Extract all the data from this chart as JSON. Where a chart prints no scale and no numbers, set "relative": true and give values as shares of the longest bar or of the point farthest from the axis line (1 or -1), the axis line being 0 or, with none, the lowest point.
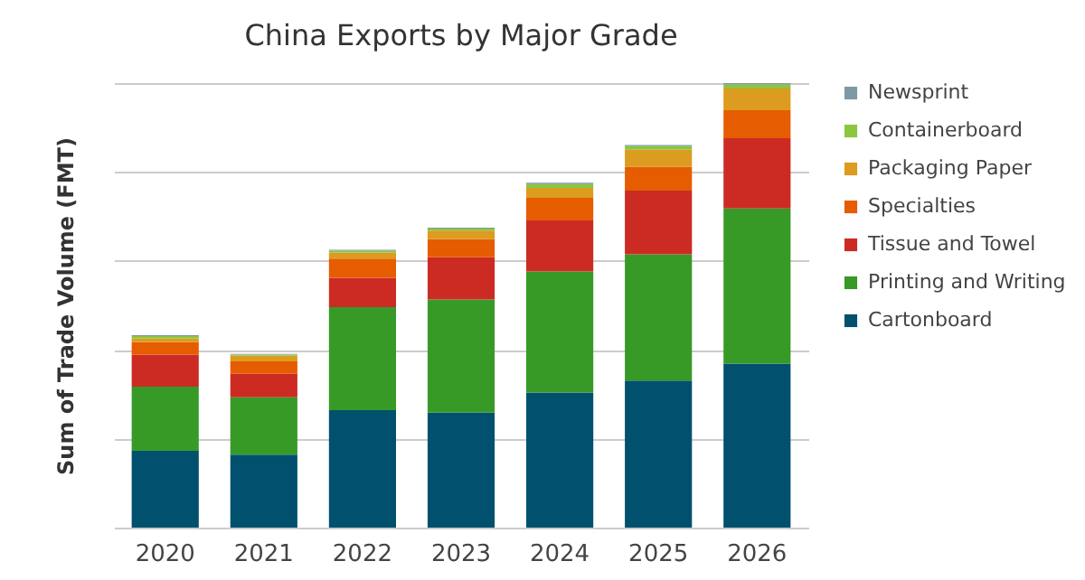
{
  "chart_data": {
    "type": "bar",
    "title": "China Exports by Major Grade",
    "ylabel": "Sum of Trade Volume (FMT)",
    "categories": [
      "2020",
      "2021",
      "2022",
      "2023",
      "2024",
      "2025",
      "2026"
    ],
    "stacked": true,
    "relative": true,
    "grid": "y",
    "legend": "right",
    "series": [
      {
        "name": "Cartonboard",
        "color": "#00506e",
        "values": [
          0.173,
          0.164,
          0.264,
          0.259,
          0.304,
          0.331,
          0.369
        ]
      },
      {
        "name": "Printing and Writing",
        "color": "#379a27",
        "values": [
          0.144,
          0.129,
          0.232,
          0.254,
          0.272,
          0.284,
          0.349
        ]
      },
      {
        "name": "Tissue and Towel",
        "color": "#cc2b24",
        "values": [
          0.072,
          0.053,
          0.066,
          0.095,
          0.115,
          0.143,
          0.158
        ]
      },
      {
        "name": "Specialties",
        "color": "#e65c00",
        "values": [
          0.028,
          0.028,
          0.043,
          0.041,
          0.051,
          0.054,
          0.063
        ]
      },
      {
        "name": "Packaging Paper",
        "color": "#dc9c1f",
        "values": [
          0.009,
          0.013,
          0.014,
          0.019,
          0.022,
          0.038,
          0.049
        ]
      },
      {
        "name": "Containerboard",
        "color": "#8cc63f",
        "values": [
          0.005,
          0.002,
          0.004,
          0.005,
          0.009,
          0.008,
          0.009
        ]
      },
      {
        "name": "Newsprint",
        "color": "#7f98a5",
        "values": [
          0.002,
          0.002,
          0.002,
          0.002,
          0.003,
          0.003,
          0.003
        ]
      }
    ]
  }
}
